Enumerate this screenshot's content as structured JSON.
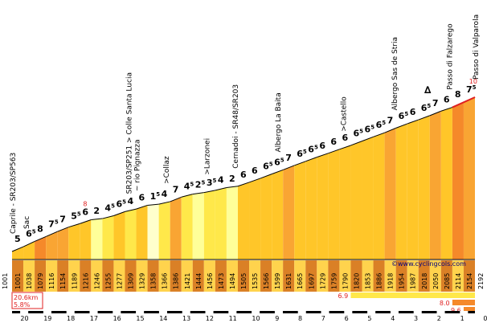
{
  "chart_data": {
    "type": "area",
    "start_altitude": "1001",
    "end_altitude": "2192",
    "credit": "©www.cyclingcols.com",
    "summary": {
      "length": "20.6km",
      "avg_gradient": "5.8%"
    },
    "summit_marker": "∆",
    "km_ticks": [
      "20",
      "19",
      "18",
      "17",
      "16",
      "15",
      "14",
      "13",
      "12",
      "11",
      "10",
      "9",
      "8",
      "7",
      "6",
      "5",
      "4",
      "3",
      "2",
      "1",
      "0"
    ],
    "segments": [
      {
        "g": "5",
        "s": "",
        "alt": "1001"
      },
      {
        "g": "6",
        "s": "5",
        "alt": "1038"
      },
      {
        "g": "8",
        "s": "",
        "alt": "1079"
      },
      {
        "g": "7",
        "s": "5",
        "alt": "1116"
      },
      {
        "g": "7",
        "s": "",
        "alt": "1154"
      },
      {
        "g": "5",
        "s": "5",
        "alt": "1189"
      },
      {
        "g": "6",
        "s": "",
        "alt": "1216"
      },
      {
        "g": "2",
        "s": "",
        "alt": "1246"
      },
      {
        "g": "4",
        "s": "5",
        "alt": "1255"
      },
      {
        "g": "6",
        "s": "5",
        "alt": "1277"
      },
      {
        "g": "4",
        "s": "",
        "alt": "1309"
      },
      {
        "g": "6",
        "s": "",
        "alt": "1329"
      },
      {
        "g": "1",
        "s": "5",
        "alt": "1358"
      },
      {
        "g": "4",
        "s": "",
        "alt": "1366"
      },
      {
        "g": "7",
        "s": "",
        "alt": "1386"
      },
      {
        "g": "4",
        "s": "5",
        "alt": "1421"
      },
      {
        "g": "2",
        "s": "5",
        "alt": "1444"
      },
      {
        "g": "3",
        "s": "5",
        "alt": "1456"
      },
      {
        "g": "4",
        "s": "",
        "alt": "1473"
      },
      {
        "g": "2",
        "s": "",
        "alt": "1494"
      },
      {
        "g": "6",
        "s": "",
        "alt": "1505"
      },
      {
        "g": "6",
        "s": "",
        "alt": "1535"
      },
      {
        "g": "6",
        "s": "5",
        "alt": "1566"
      },
      {
        "g": "6",
        "s": "5",
        "alt": "1599"
      },
      {
        "g": "7",
        "s": "",
        "alt": "1631"
      },
      {
        "g": "6",
        "s": "5",
        "alt": "1665"
      },
      {
        "g": "6",
        "s": "5",
        "alt": "1697"
      },
      {
        "g": "6",
        "s": "",
        "alt": "1729"
      },
      {
        "g": "6",
        "s": "",
        "alt": "1759"
      },
      {
        "g": "6",
        "s": "",
        "alt": "1790"
      },
      {
        "g": "6",
        "s": "5",
        "alt": "1820"
      },
      {
        "g": "6",
        "s": "5",
        "alt": "1853"
      },
      {
        "g": "6",
        "s": "5",
        "alt": "1886"
      },
      {
        "g": "7",
        "s": "",
        "alt": "1918"
      },
      {
        "g": "6",
        "s": "5",
        "alt": "1954"
      },
      {
        "g": "6",
        "s": "",
        "alt": "1987"
      },
      {
        "g": "6",
        "s": "5",
        "alt": "2018"
      },
      {
        "g": "7",
        "s": "",
        "alt": "2050"
      },
      {
        "g": "6",
        "s": "",
        "alt": "2085"
      },
      {
        "g": "8",
        "s": "",
        "alt": "2114"
      },
      {
        "g": "7",
        "s": "5",
        "alt": "2154"
      }
    ],
    "places": [
      {
        "label": "Caprile - SR203/SP563",
        "seg": 0
      },
      {
        "label": "Sac",
        "seg": 1.2
      },
      {
        "label": "SR203/SP251 > Colle Santa Lucia",
        "seg": 10.3
      },
      {
        "label": "~ rio Pignazza",
        "seg": 11
      },
      {
        "label": ">Collaz",
        "seg": 13.6
      },
      {
        "label": ">Larzonei",
        "seg": 17.2
      },
      {
        "label": "Cernadoi - SR48/SR203",
        "seg": 19.7
      },
      {
        "label": "Albergo La Baita",
        "seg": 23.5
      },
      {
        "label": ">Castello",
        "seg": 29.3
      },
      {
        "label": "Albergo Sas de Stria",
        "seg": 33.8
      },
      {
        "label": "Passo di Falzarego",
        "seg": 38.7
      },
      {
        "label": "Passo di Valparola",
        "seg": 41
      }
    ],
    "red_annotations": [
      {
        "label": "8",
        "seg": 6
      },
      {
        "label": "10",
        "seg": 40.2
      }
    ],
    "info_bars": [
      {
        "label": "6.9",
        "from_seg": 30,
        "to_seg": 41
      },
      {
        "label": "8.0",
        "from_seg": 39,
        "to_seg": 41
      },
      {
        "label": "9.6",
        "from_seg": 40,
        "to_seg": 41
      }
    ]
  },
  "colors": {
    "g1": "#ffffcc",
    "g2": "#ffff99",
    "g3_4": "#ffe84a",
    "g5_6": "#ffc629",
    "g7": "#f9a533",
    "g8": "#f5892a",
    "base_bar": "#ffd34d",
    "dark_base": "#d46a00",
    "summit_line": "#e02020",
    "profile_line": "#000000"
  }
}
